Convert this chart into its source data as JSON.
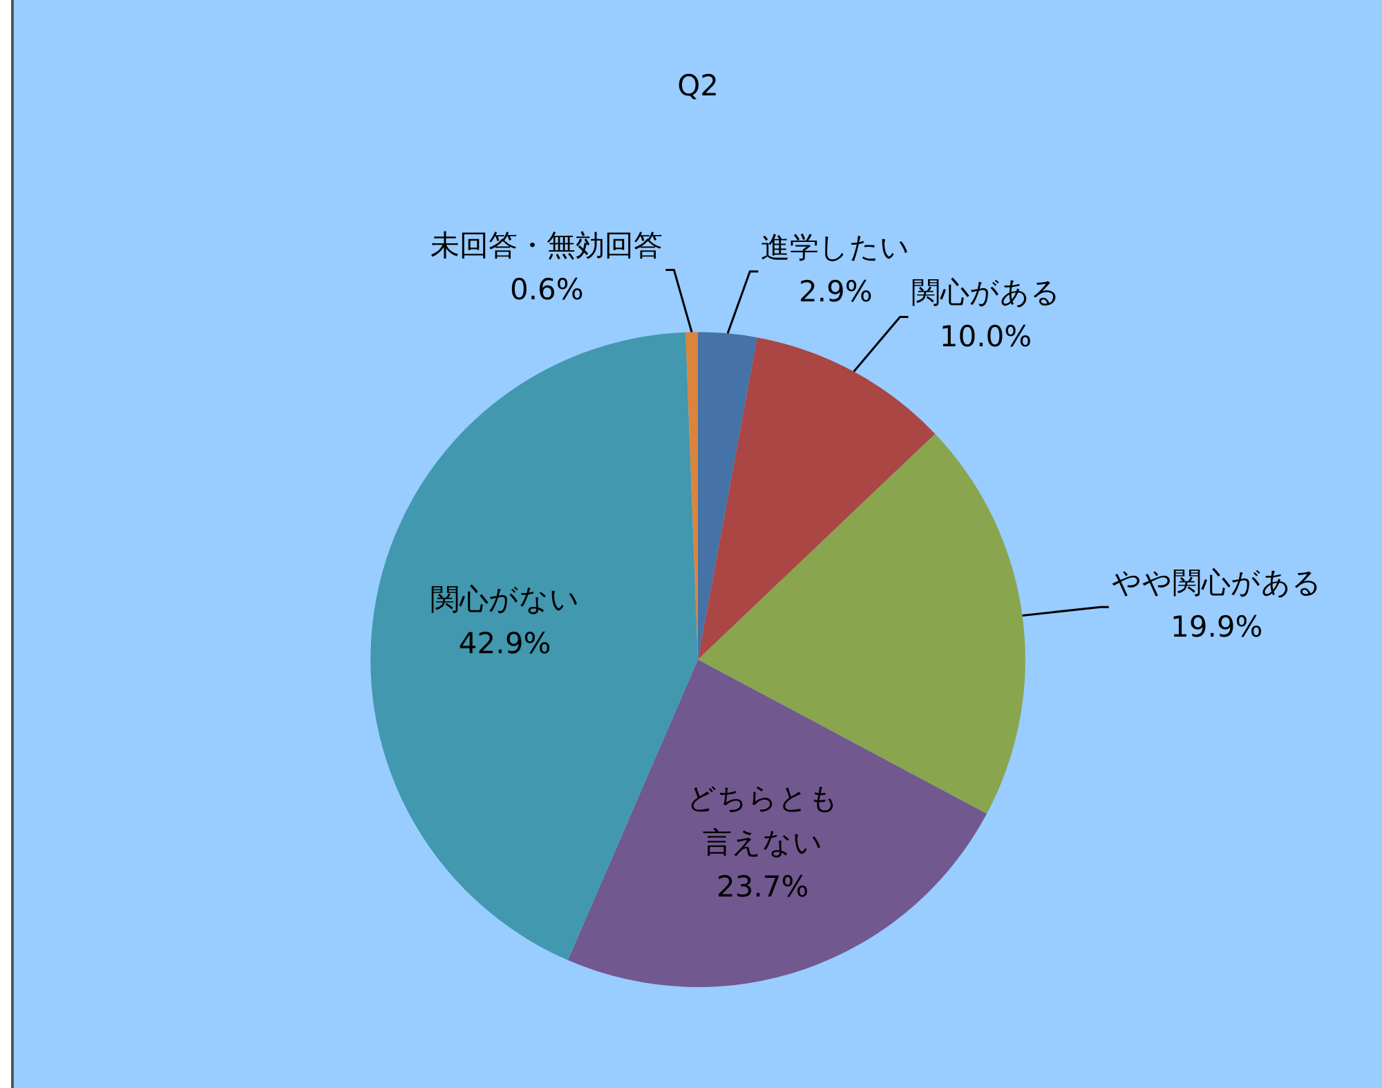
{
  "chart_data": {
    "type": "pie",
    "title": "Q2",
    "categories": [
      "進学したい",
      "関心がある",
      "やや関心がある",
      "どちらとも言えない",
      "関心がない",
      "未回答・無効回答"
    ],
    "values": [
      2.9,
      10.0,
      19.9,
      23.7,
      42.9,
      0.6
    ],
    "value_labels": [
      "2.9%",
      "10.0%",
      "19.9%",
      "23.7%",
      "42.9%",
      "0.6%"
    ],
    "colors": [
      "#4572a7",
      "#aa4643",
      "#89a54e",
      "#71588f",
      "#4198af",
      "#db843d"
    ],
    "legend": false
  }
}
